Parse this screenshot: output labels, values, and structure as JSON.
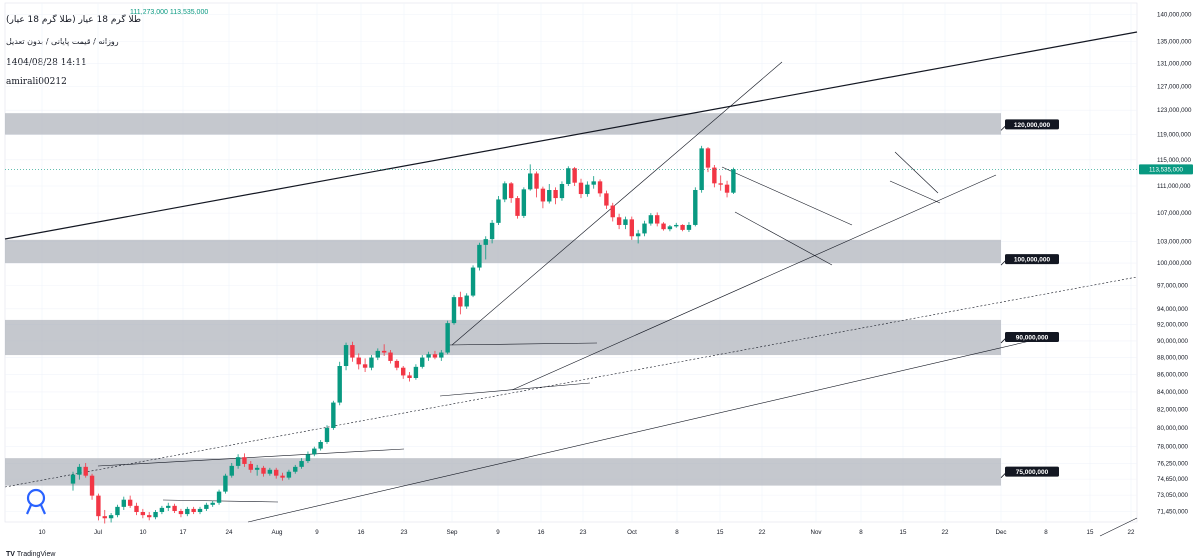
{
  "header": {
    "symbol": "طلا گرم 18 عیار (طلا گرم 18 عیار)",
    "settings": "روزانه / قیمت پایانی / بدون تعدیل",
    "date": "1404/08/28 14:11",
    "author": "amirali00212",
    "ohlc": "111,273,000  113,535,000"
  },
  "watermark": "TradingView",
  "colors": {
    "up": "#089981",
    "down": "#f23645",
    "zone": "#b2b5be",
    "line": "#131722"
  },
  "chart_data": {
    "type": "candlestick",
    "y_scale": "log",
    "ylim": [
      70500000,
      140000000
    ],
    "y_ticks": [
      {
        "label": "140,000,000",
        "value": 140000000
      },
      {
        "label": "135,000,000",
        "value": 135000000
      },
      {
        "label": "131,000,000",
        "value": 131000000
      },
      {
        "label": "127,000,000",
        "value": 127000000
      },
      {
        "label": "123,000,000",
        "value": 123000000
      },
      {
        "label": "119,000,000",
        "value": 119000000
      },
      {
        "label": "115,000,000",
        "value": 115000000
      },
      {
        "label": "111,000,000",
        "value": 111000000
      },
      {
        "label": "107,000,000",
        "value": 107000000
      },
      {
        "label": "103,000,000",
        "value": 103000000
      },
      {
        "label": "100,000,000",
        "value": 100000000
      },
      {
        "label": "97,000,000",
        "value": 97000000
      },
      {
        "label": "94,000,000",
        "value": 94000000
      },
      {
        "label": "92,000,000",
        "value": 92000000
      },
      {
        "label": "90,000,000",
        "value": 90000000
      },
      {
        "label": "88,000,000",
        "value": 88000000
      },
      {
        "label": "86,000,000",
        "value": 86000000
      },
      {
        "label": "84,000,000",
        "value": 84000000
      },
      {
        "label": "82,000,000",
        "value": 82000000
      },
      {
        "label": "80,000,000",
        "value": 80000000
      },
      {
        "label": "78,000,000",
        "value": 78000000
      },
      {
        "label": "76,250,000",
        "value": 76250000
      },
      {
        "label": "74,650,000",
        "value": 74650000
      },
      {
        "label": "73,050,000",
        "value": 73050000
      },
      {
        "label": "71,450,000",
        "value": 71450000
      }
    ],
    "x_ticks": [
      "10",
      "Jul",
      "10",
      "17",
      "24",
      "Aug",
      "9",
      "16",
      "23",
      "Sep",
      "9",
      "16",
      "23",
      "Oct",
      "8",
      "15",
      "22",
      "Nov",
      "8",
      "15",
      "22",
      "Dec",
      "8",
      "15",
      "22"
    ],
    "last_price": {
      "label": "113,535,000",
      "value": 113535000
    },
    "zones": [
      {
        "label": "120,000,000",
        "low": 119000000,
        "high": 122500000,
        "label_value": 120000000
      },
      {
        "label": "100,000,000",
        "low": 100000000,
        "high": 103200000,
        "label_value": 100000000
      },
      {
        "label": "90,000,000",
        "low": 88300000,
        "high": 92600000,
        "label_value": 90000000
      },
      {
        "label": "75,000,000",
        "low": 74000000,
        "high": 76800000,
        "label_value": 75000000
      }
    ],
    "candles": [
      {
        "o": 74200000,
        "h": 75400000,
        "l": 73500000,
        "c": 75100000
      },
      {
        "o": 75100000,
        "h": 76200000,
        "l": 74600000,
        "c": 75900000
      },
      {
        "o": 75900000,
        "h": 76300000,
        "l": 74800000,
        "c": 75000000
      },
      {
        "o": 75000000,
        "h": 75200000,
        "l": 72600000,
        "c": 73000000
      },
      {
        "o": 73000000,
        "h": 73200000,
        "l": 70600000,
        "c": 71000000
      },
      {
        "o": 71000000,
        "h": 71600000,
        "l": 70300000,
        "c": 70800000
      },
      {
        "o": 70800000,
        "h": 71300000,
        "l": 70400000,
        "c": 71100000
      },
      {
        "o": 71100000,
        "h": 72100000,
        "l": 70900000,
        "c": 71900000
      },
      {
        "o": 71900000,
        "h": 72900000,
        "l": 71600000,
        "c": 72600000
      },
      {
        "o": 72600000,
        "h": 73000000,
        "l": 71800000,
        "c": 72000000
      },
      {
        "o": 72000000,
        "h": 72300000,
        "l": 71100000,
        "c": 71400000
      },
      {
        "o": 71400000,
        "h": 71700000,
        "l": 70800000,
        "c": 71100000
      },
      {
        "o": 71100000,
        "h": 71400000,
        "l": 70600000,
        "c": 70900000
      },
      {
        "o": 70900000,
        "h": 71600000,
        "l": 70700000,
        "c": 71400000
      },
      {
        "o": 71400000,
        "h": 72000000,
        "l": 71200000,
        "c": 71800000
      },
      {
        "o": 71800000,
        "h": 72300000,
        "l": 71500000,
        "c": 72000000
      },
      {
        "o": 72000000,
        "h": 72200000,
        "l": 71300000,
        "c": 71500000
      },
      {
        "o": 71500000,
        "h": 71700000,
        "l": 70900000,
        "c": 71200000
      },
      {
        "o": 71200000,
        "h": 71900000,
        "l": 71000000,
        "c": 71700000
      },
      {
        "o": 71700000,
        "h": 71900000,
        "l": 71200000,
        "c": 71400000
      },
      {
        "o": 71400000,
        "h": 71900000,
        "l": 71200000,
        "c": 71700000
      },
      {
        "o": 71700000,
        "h": 72300000,
        "l": 71500000,
        "c": 72100000
      },
      {
        "o": 72100000,
        "h": 72500000,
        "l": 71900000,
        "c": 72300000
      },
      {
        "o": 72300000,
        "h": 73600000,
        "l": 72100000,
        "c": 73400000
      },
      {
        "o": 73400000,
        "h": 75200000,
        "l": 73200000,
        "c": 75000000
      },
      {
        "o": 75000000,
        "h": 76300000,
        "l": 74800000,
        "c": 76000000
      },
      {
        "o": 76000000,
        "h": 77200000,
        "l": 75700000,
        "c": 76900000
      },
      {
        "o": 76900000,
        "h": 77300000,
        "l": 75900000,
        "c": 76200000
      },
      {
        "o": 76200000,
        "h": 76500000,
        "l": 75300000,
        "c": 75600000
      },
      {
        "o": 75600000,
        "h": 76100000,
        "l": 75000000,
        "c": 75800000
      },
      {
        "o": 75800000,
        "h": 76000000,
        "l": 74900000,
        "c": 75200000
      },
      {
        "o": 75200000,
        "h": 75800000,
        "l": 75000000,
        "c": 75600000
      },
      {
        "o": 75600000,
        "h": 75800000,
        "l": 74700000,
        "c": 75000000
      },
      {
        "o": 75000000,
        "h": 75300000,
        "l": 74500000,
        "c": 74800000
      },
      {
        "o": 74800000,
        "h": 75600000,
        "l": 74600000,
        "c": 75400000
      },
      {
        "o": 75400000,
        "h": 76100000,
        "l": 75200000,
        "c": 75900000
      },
      {
        "o": 75900000,
        "h": 76800000,
        "l": 75700000,
        "c": 76500000
      },
      {
        "o": 76500000,
        "h": 77500000,
        "l": 76300000,
        "c": 77200000
      },
      {
        "o": 77200000,
        "h": 78000000,
        "l": 77000000,
        "c": 77800000
      },
      {
        "o": 77800000,
        "h": 78700000,
        "l": 77600000,
        "c": 78500000
      },
      {
        "o": 78500000,
        "h": 80300000,
        "l": 78300000,
        "c": 80000000
      },
      {
        "o": 80000000,
        "h": 83000000,
        "l": 79800000,
        "c": 82800000
      },
      {
        "o": 82800000,
        "h": 87500000,
        "l": 82500000,
        "c": 87000000
      },
      {
        "o": 87000000,
        "h": 89800000,
        "l": 86500000,
        "c": 89500000
      },
      {
        "o": 89500000,
        "h": 89900000,
        "l": 87500000,
        "c": 88000000
      },
      {
        "o": 88000000,
        "h": 88500000,
        "l": 86600000,
        "c": 87200000
      },
      {
        "o": 87200000,
        "h": 87900000,
        "l": 86300000,
        "c": 86800000
      },
      {
        "o": 86800000,
        "h": 88300000,
        "l": 86500000,
        "c": 88000000
      },
      {
        "o": 88000000,
        "h": 89100000,
        "l": 87700000,
        "c": 88800000
      },
      {
        "o": 88800000,
        "h": 89600000,
        "l": 88200000,
        "c": 88600000
      },
      {
        "o": 88600000,
        "h": 88900000,
        "l": 87300000,
        "c": 87600000
      },
      {
        "o": 87600000,
        "h": 87800000,
        "l": 86500000,
        "c": 86800000
      },
      {
        "o": 86800000,
        "h": 87000000,
        "l": 85500000,
        "c": 85900000
      },
      {
        "o": 85900000,
        "h": 86300000,
        "l": 85200000,
        "c": 85600000
      },
      {
        "o": 85600000,
        "h": 87200000,
        "l": 85400000,
        "c": 86900000
      },
      {
        "o": 86900000,
        "h": 88300000,
        "l": 86700000,
        "c": 88000000
      },
      {
        "o": 88000000,
        "h": 88700000,
        "l": 87600000,
        "c": 88400000
      },
      {
        "o": 88400000,
        "h": 88800000,
        "l": 87800000,
        "c": 88000000
      },
      {
        "o": 88000000,
        "h": 88900000,
        "l": 87600000,
        "c": 88600000
      },
      {
        "o": 88600000,
        "h": 92500000,
        "l": 88400000,
        "c": 92200000
      },
      {
        "o": 92200000,
        "h": 95800000,
        "l": 92000000,
        "c": 95500000
      },
      {
        "o": 95500000,
        "h": 96200000,
        "l": 93300000,
        "c": 94300000
      },
      {
        "o": 94300000,
        "h": 96000000,
        "l": 94000000,
        "c": 95700000
      },
      {
        "o": 95700000,
        "h": 99700000,
        "l": 95500000,
        "c": 99400000
      },
      {
        "o": 99400000,
        "h": 102800000,
        "l": 99000000,
        "c": 102500000
      },
      {
        "o": 102500000,
        "h": 103700000,
        "l": 100500000,
        "c": 103300000
      },
      {
        "o": 103300000,
        "h": 106000000,
        "l": 102700000,
        "c": 105600000
      },
      {
        "o": 105600000,
        "h": 109500000,
        "l": 105300000,
        "c": 109000000
      },
      {
        "o": 109000000,
        "h": 111700000,
        "l": 108600000,
        "c": 111400000
      },
      {
        "o": 111400000,
        "h": 111600000,
        "l": 108500000,
        "c": 109200000
      },
      {
        "o": 109200000,
        "h": 109500000,
        "l": 106200000,
        "c": 106600000
      },
      {
        "o": 106600000,
        "h": 110800000,
        "l": 106300000,
        "c": 110500000
      },
      {
        "o": 110500000,
        "h": 114300000,
        "l": 110300000,
        "c": 112900000
      },
      {
        "o": 112900000,
        "h": 113200000,
        "l": 109300000,
        "c": 110600000
      },
      {
        "o": 110600000,
        "h": 110900000,
        "l": 107700000,
        "c": 108700000
      },
      {
        "o": 108700000,
        "h": 111300000,
        "l": 108400000,
        "c": 110400000
      },
      {
        "o": 110400000,
        "h": 110800000,
        "l": 108300000,
        "c": 109200000
      },
      {
        "o": 109200000,
        "h": 111700000,
        "l": 108800000,
        "c": 111300000
      },
      {
        "o": 111300000,
        "h": 114000000,
        "l": 111000000,
        "c": 113700000
      },
      {
        "o": 113700000,
        "h": 113900000,
        "l": 111000000,
        "c": 111500000
      },
      {
        "o": 111500000,
        "h": 112100000,
        "l": 109200000,
        "c": 109800000
      },
      {
        "o": 109800000,
        "h": 111700000,
        "l": 109400000,
        "c": 111200000
      },
      {
        "o": 111200000,
        "h": 112500000,
        "l": 110600000,
        "c": 111700000
      },
      {
        "o": 111700000,
        "h": 112000000,
        "l": 109400000,
        "c": 109900000
      },
      {
        "o": 109900000,
        "h": 110300000,
        "l": 107600000,
        "c": 108100000
      },
      {
        "o": 108100000,
        "h": 108500000,
        "l": 105800000,
        "c": 106400000
      },
      {
        "o": 106400000,
        "h": 106900000,
        "l": 104700000,
        "c": 105300000
      },
      {
        "o": 105300000,
        "h": 106500000,
        "l": 104700000,
        "c": 106100000
      },
      {
        "o": 106100000,
        "h": 106500000,
        "l": 103200000,
        "c": 103700000
      },
      {
        "o": 103700000,
        "h": 104600000,
        "l": 102700000,
        "c": 104100000
      },
      {
        "o": 104100000,
        "h": 105900000,
        "l": 103700000,
        "c": 105500000
      },
      {
        "o": 105500000,
        "h": 107000000,
        "l": 105200000,
        "c": 106700000
      },
      {
        "o": 106700000,
        "h": 107100000,
        "l": 105100000,
        "c": 105500000
      },
      {
        "o": 105500000,
        "h": 105700000,
        "l": 104500000,
        "c": 104700000
      },
      {
        "o": 104700000,
        "h": 105300000,
        "l": 104400000,
        "c": 105100000
      },
      {
        "o": 105100000,
        "h": 105600000,
        "l": 104900000,
        "c": 105300000
      },
      {
        "o": 105300000,
        "h": 105400000,
        "l": 104400000,
        "c": 104600000
      },
      {
        "o": 104600000,
        "h": 105700000,
        "l": 104300000,
        "c": 105300000
      },
      {
        "o": 105300000,
        "h": 110800000,
        "l": 105100000,
        "c": 110400000
      },
      {
        "o": 110400000,
        "h": 117200000,
        "l": 110000000,
        "c": 116800000
      },
      {
        "o": 116800000,
        "h": 117000000,
        "l": 113100000,
        "c": 113800000
      },
      {
        "o": 113800000,
        "h": 114200000,
        "l": 110800000,
        "c": 111400000
      },
      {
        "o": 111400000,
        "h": 112600000,
        "l": 110300000,
        "c": 111200000
      },
      {
        "o": 111200000,
        "h": 111800000,
        "l": 109300000,
        "c": 110000000
      },
      {
        "o": 110000000,
        "h": 113800000,
        "l": 109800000,
        "c": 113535000
      }
    ]
  }
}
